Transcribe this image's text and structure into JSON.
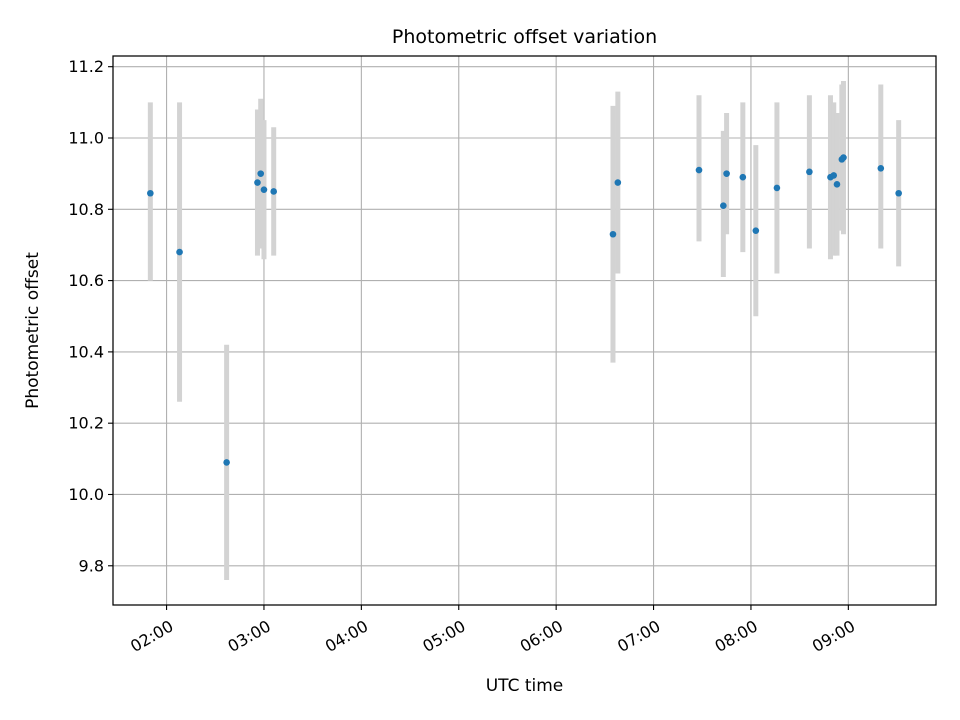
{
  "chart_data": {
    "type": "scatter",
    "title": "Photometric offset variation",
    "xlabel": "UTC time",
    "ylabel": "Photometric offset",
    "x_tick_labels": [
      "02:00",
      "03:00",
      "04:00",
      "05:00",
      "06:00",
      "07:00",
      "08:00",
      "09:00"
    ],
    "x_tick_hours": [
      2,
      3,
      4,
      5,
      6,
      7,
      8,
      9
    ],
    "y_ticks": [
      9.8,
      10.0,
      10.2,
      10.4,
      10.6,
      10.8,
      11.0,
      11.2
    ],
    "y_tick_labels": [
      "9.8",
      "10.0",
      "10.2",
      "10.4",
      "10.6",
      "10.8",
      "11.0",
      "11.2"
    ],
    "xlim_hours": [
      1.45,
      9.9
    ],
    "ylim": [
      9.69,
      11.23
    ],
    "grid": true,
    "colors": {
      "points": "#1f77b4",
      "error_bars": "#d3d3d3",
      "grid": "#b0b0b0"
    },
    "points": [
      {
        "time": "01:50",
        "y": 10.845,
        "low": 10.6,
        "high": 11.1
      },
      {
        "time": "02:08",
        "y": 10.68,
        "low": 10.26,
        "high": 11.1
      },
      {
        "time": "02:37",
        "y": 10.09,
        "low": 9.76,
        "high": 10.42
      },
      {
        "time": "02:56",
        "y": 10.875,
        "low": 10.67,
        "high": 11.08
      },
      {
        "time": "02:58",
        "y": 10.9,
        "low": 10.69,
        "high": 11.11
      },
      {
        "time": "03:00",
        "y": 10.855,
        "low": 10.66,
        "high": 11.05
      },
      {
        "time": "03:06",
        "y": 10.85,
        "low": 10.67,
        "high": 11.03
      },
      {
        "time": "06:35",
        "y": 10.73,
        "low": 10.37,
        "high": 11.09
      },
      {
        "time": "06:38",
        "y": 10.875,
        "low": 10.62,
        "high": 11.13
      },
      {
        "time": "07:28",
        "y": 10.91,
        "low": 10.71,
        "high": 11.12
      },
      {
        "time": "07:43",
        "y": 10.81,
        "low": 10.61,
        "high": 11.02
      },
      {
        "time": "07:45",
        "y": 10.9,
        "low": 10.73,
        "high": 11.07
      },
      {
        "time": "07:55",
        "y": 10.89,
        "low": 10.68,
        "high": 11.1
      },
      {
        "time": "08:03",
        "y": 10.74,
        "low": 10.5,
        "high": 10.98
      },
      {
        "time": "08:16",
        "y": 10.86,
        "low": 10.62,
        "high": 11.1
      },
      {
        "time": "08:36",
        "y": 10.905,
        "low": 10.69,
        "high": 11.12
      },
      {
        "time": "08:49",
        "y": 10.89,
        "low": 10.66,
        "high": 11.12
      },
      {
        "time": "08:51",
        "y": 10.895,
        "low": 10.67,
        "high": 11.1
      },
      {
        "time": "08:53",
        "y": 10.87,
        "low": 10.67,
        "high": 11.07
      },
      {
        "time": "08:56",
        "y": 10.94,
        "low": 10.74,
        "high": 11.15
      },
      {
        "time": "08:57",
        "y": 10.945,
        "low": 10.73,
        "high": 11.16
      },
      {
        "time": "09:20",
        "y": 10.915,
        "low": 10.69,
        "high": 11.15
      },
      {
        "time": "09:31",
        "y": 10.845,
        "low": 10.64,
        "high": 11.05
      }
    ]
  }
}
